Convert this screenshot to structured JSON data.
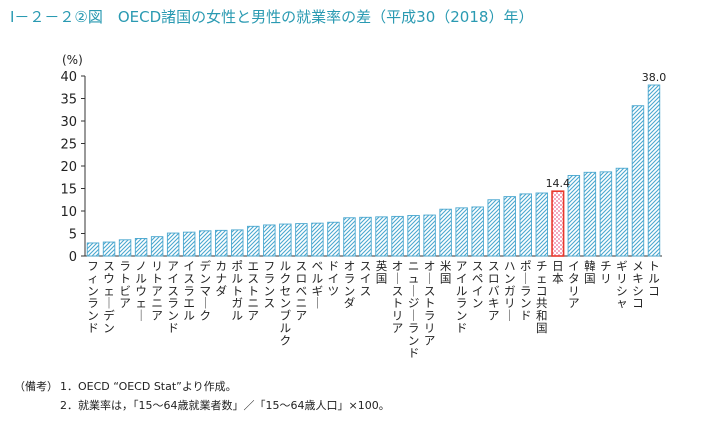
{
  "title": "Ⅰ－２－２②図　OECD諸国の女性と男性の就業率の差（平成30（2018）年）",
  "chart_data": {
    "type": "bar",
    "ylabel": "(%)",
    "ylim": [
      0,
      40
    ],
    "yticks": [
      0,
      5,
      10,
      15,
      20,
      25,
      30,
      35,
      40
    ],
    "grid": false,
    "categories": [
      "フィンランド",
      "スウェーデン",
      "ラトビア",
      "ノルウェー",
      "リトアニア",
      "アイスランド",
      "イスラエル",
      "デンマーク",
      "カナダ",
      "ポルトガル",
      "エストニア",
      "フランス",
      "ルクセンブルク",
      "スロベニア",
      "ベルギー",
      "ドイツ",
      "オランダ",
      "スイス",
      "英国",
      "オーストリア",
      "ニュージーランド",
      "オーストラリア",
      "米国",
      "アイルランド",
      "スペイン",
      "スロバキア",
      "ハンガリー",
      "ポーランド",
      "チェコ共和国",
      "日本",
      "イタリア",
      "韓国",
      "チリ",
      "ギリシャ",
      "メキシコ",
      "トルコ"
    ],
    "values": [
      2.9,
      3.1,
      3.6,
      3.9,
      4.3,
      5.1,
      5.3,
      5.6,
      5.7,
      5.8,
      6.6,
      6.9,
      7.1,
      7.2,
      7.3,
      7.5,
      8.5,
      8.6,
      8.7,
      8.8,
      9.0,
      9.1,
      10.4,
      10.7,
      10.9,
      12.5,
      13.2,
      13.8,
      14.0,
      14.4,
      17.9,
      18.6,
      18.7,
      19.5,
      33.4,
      38.0
    ],
    "highlight_category": "日本",
    "data_labels": [
      {
        "category": "日本",
        "text": "14.4"
      },
      {
        "category": "トルコ",
        "text": "38.0"
      }
    ],
    "colors": {
      "bar_stripe": "#4aa7cf",
      "highlight": "#e8392c",
      "highlight_fill": "#f6c3d2",
      "axis": "#333333"
    }
  },
  "notes": {
    "label": "（備考）",
    "lines": [
      {
        "num": "1．",
        "text": "OECD “OECD Stat”より作成。"
      },
      {
        "num": "2．",
        "text": "就業率は，「15～64歳就業者数」／「15～64歳人口」×100。"
      }
    ]
  }
}
